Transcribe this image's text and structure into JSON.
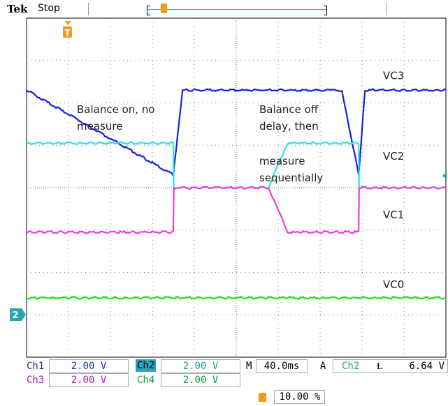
{
  "header": {
    "brand": "Tek",
    "state": "Stop"
  },
  "chart_data": {
    "type": "line",
    "title": "",
    "time_per_div_ms": 40,
    "volts_per_div": 2,
    "divisions": {
      "x": 10,
      "y": 8
    },
    "trigger_marker": "T",
    "annotations": [
      {
        "text_lines": [
          "Balance on, no",
          "measure"
        ]
      },
      {
        "text_lines": [
          "Balance off",
          "delay, then"
        ]
      },
      {
        "text_lines": [
          "measure",
          "sequentially"
        ]
      }
    ],
    "series": [
      {
        "name": "VC3",
        "color": "#1a1fd6",
        "segments_div": [
          [
            -2.72,
            2.3
          ],
          [
            0.78,
            0.3
          ],
          [
            1.0,
            2.3
          ],
          [
            4.55,
            2.3
          ],
          [
            4.8,
            2.3
          ],
          [
            5.2,
            0.3
          ],
          [
            5.35,
            2.3
          ],
          [
            7.28,
            2.3
          ]
        ]
      },
      {
        "name": "VC2",
        "color": "#29e0f0",
        "segments_div": [
          [
            -2.72,
            1.05
          ],
          [
            0.78,
            1.05
          ],
          [
            0.79,
            0.0
          ],
          [
            3.05,
            0.0
          ],
          [
            3.5,
            1.05
          ],
          [
            5.2,
            1.05
          ],
          [
            5.21,
            0.0
          ],
          [
            7.28,
            0.0
          ]
        ]
      },
      {
        "name": "VC1",
        "color": "#e63fe0",
        "segments_div": [
          [
            -2.72,
            -1.05
          ],
          [
            0.78,
            -1.05
          ],
          [
            0.79,
            0.0
          ],
          [
            3.05,
            0.0
          ],
          [
            3.5,
            -1.05
          ],
          [
            5.2,
            -1.05
          ],
          [
            5.21,
            0.0
          ],
          [
            7.28,
            0.0
          ]
        ]
      },
      {
        "name": "VC0",
        "color": "#1ee01e",
        "segments_div": [
          [
            -2.72,
            -2.6
          ],
          [
            7.28,
            -2.6
          ]
        ]
      }
    ],
    "ground_marker": "2"
  },
  "footer": {
    "ch1_label": "Ch1",
    "ch1_scale": "2.00 V",
    "ch2_label": "Ch2",
    "ch2_scale": "2.00 V",
    "ch3_label": "Ch3",
    "ch3_scale": "2.00 V",
    "ch4_label": "Ch4",
    "ch4_scale": "2.00 V",
    "timebase_label": "M",
    "timebase": "40.0ms",
    "trigger_label": "A",
    "trigger_source": "Ch2",
    "trigger_slope": "Ɫ",
    "trigger_level": "6.64 V",
    "trigger_pos": "10.00 %"
  }
}
